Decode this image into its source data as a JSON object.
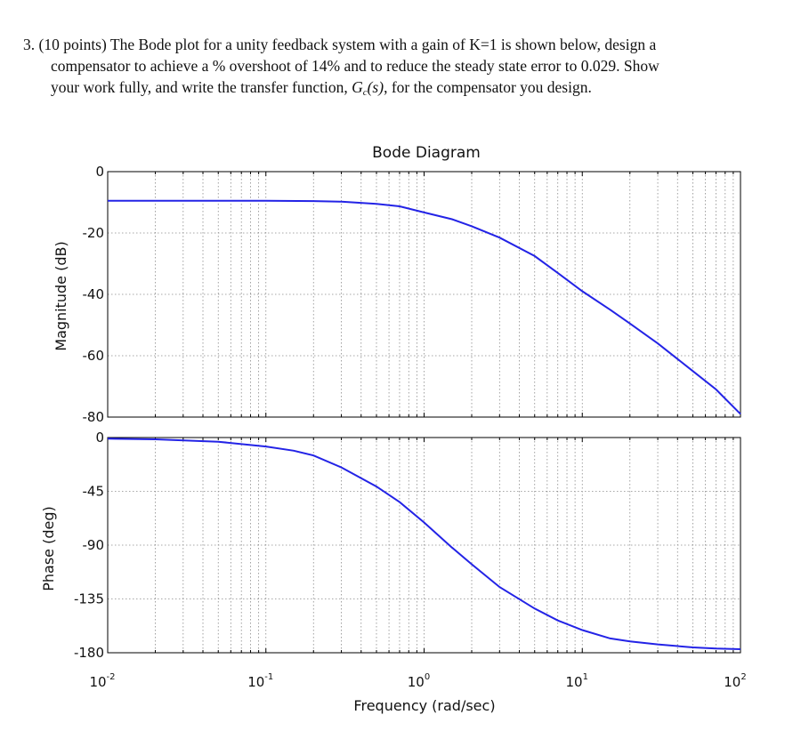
{
  "question": {
    "number": "3.",
    "points": "(10 points)",
    "line1_rest": "The Bode plot for a unity feedback system with a gain of K=1 is shown below, design a",
    "line2": "compensator to achieve a % overshoot of 14% and to reduce the steady state error to 0.029.  Show",
    "line3_pre": "your work fully, and write the transfer function, ",
    "tf_symbol": "G",
    "tf_subscript": "c",
    "tf_arg": "(s)",
    "line3_post": ", for the compensator you design."
  },
  "chart_data": {
    "type": "line",
    "title": "Bode Diagram",
    "xlabel": "Frequency  (rad/sec)",
    "x_scale": "log",
    "xlim": [
      0.01,
      100
    ],
    "x_tick_labels": [
      {
        "base": "10",
        "exp": "-2"
      },
      {
        "base": "10",
        "exp": "-1"
      },
      {
        "base": "10",
        "exp": "0"
      },
      {
        "base": "10",
        "exp": "1"
      },
      {
        "base": "10",
        "exp": "2"
      }
    ],
    "grid": true,
    "line_color": "#2323e6",
    "panels": [
      {
        "ylabel": "Magnitude (dB)",
        "ylim": [
          -80,
          0
        ],
        "yticks": [
          0,
          -20,
          -40,
          -60,
          -80
        ],
        "ytick_labels": [
          "0",
          "-20",
          "-40",
          "-60",
          "-80"
        ],
        "x": [
          0.01,
          0.1,
          0.2,
          0.3,
          0.5,
          0.7,
          1,
          1.5,
          2,
          3,
          5,
          7,
          10,
          15,
          20,
          30,
          50,
          70,
          100
        ],
        "y": [
          -9.5,
          -9.5,
          -9.6,
          -9.8,
          -10.5,
          -11.3,
          -13.3,
          -15.5,
          -17.8,
          -21.5,
          -27.5,
          -33,
          -39,
          -45,
          -49.5,
          -56,
          -65,
          -71,
          -79
        ]
      },
      {
        "ylabel": "Phase (deg)",
        "ylim": [
          -180,
          0
        ],
        "yticks": [
          0,
          -45,
          -90,
          -135,
          -180
        ],
        "ytick_labels": [
          "0",
          "-45",
          "-90",
          "-135",
          "-180"
        ],
        "x": [
          0.01,
          0.02,
          0.05,
          0.1,
          0.15,
          0.2,
          0.3,
          0.5,
          0.7,
          1,
          1.5,
          2,
          3,
          5,
          7,
          10,
          15,
          20,
          30,
          50,
          70,
          100
        ],
        "y": [
          -1,
          -1.5,
          -3.5,
          -7.5,
          -11,
          -15,
          -25,
          -41,
          -54,
          -71,
          -92,
          -106,
          -125,
          -143,
          -153,
          -161,
          -168,
          -170.5,
          -173,
          -175.5,
          -176.5,
          -177
        ]
      }
    ]
  }
}
